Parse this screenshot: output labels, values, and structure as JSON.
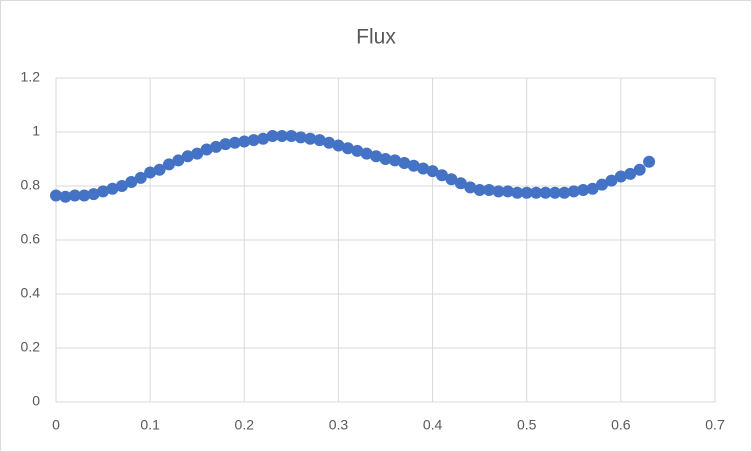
{
  "chart_data": {
    "type": "scatter",
    "title": "Flux",
    "color": "#4472c4",
    "grid": true,
    "xlim": [
      0,
      0.7
    ],
    "xticks": [
      0,
      0.1,
      0.2,
      0.3,
      0.4,
      0.5,
      0.6,
      0.7
    ],
    "ylim": [
      0,
      1.2
    ],
    "yticks": [
      0,
      0.2,
      0.4,
      0.6,
      0.8,
      1,
      1.2
    ],
    "x": [
      0,
      0.01,
      0.02,
      0.03,
      0.04,
      0.05,
      0.06,
      0.07,
      0.08,
      0.09,
      0.1,
      0.11,
      0.12,
      0.13,
      0.14,
      0.15,
      0.16,
      0.17,
      0.18,
      0.19,
      0.2,
      0.21,
      0.22,
      0.23,
      0.24,
      0.25,
      0.26,
      0.27,
      0.28,
      0.29,
      0.3,
      0.31,
      0.32,
      0.33,
      0.34,
      0.35,
      0.36,
      0.37,
      0.38,
      0.39,
      0.4,
      0.41,
      0.42,
      0.43,
      0.44,
      0.45,
      0.46,
      0.47,
      0.48,
      0.49,
      0.5,
      0.51,
      0.52,
      0.53,
      0.54,
      0.55,
      0.56,
      0.57,
      0.58,
      0.59,
      0.6,
      0.61,
      0.62,
      0.63
    ],
    "values": [
      0.765,
      0.76,
      0.765,
      0.765,
      0.77,
      0.78,
      0.79,
      0.8,
      0.815,
      0.83,
      0.85,
      0.86,
      0.88,
      0.895,
      0.91,
      0.92,
      0.935,
      0.945,
      0.955,
      0.96,
      0.965,
      0.97,
      0.975,
      0.985,
      0.985,
      0.985,
      0.98,
      0.975,
      0.97,
      0.96,
      0.95,
      0.94,
      0.93,
      0.92,
      0.91,
      0.9,
      0.895,
      0.885,
      0.875,
      0.865,
      0.855,
      0.84,
      0.825,
      0.81,
      0.795,
      0.785,
      0.785,
      0.78,
      0.78,
      0.775,
      0.775,
      0.775,
      0.775,
      0.775,
      0.775,
      0.78,
      0.785,
      0.79,
      0.805,
      0.82,
      0.835,
      0.845,
      0.86,
      0.89
    ]
  }
}
